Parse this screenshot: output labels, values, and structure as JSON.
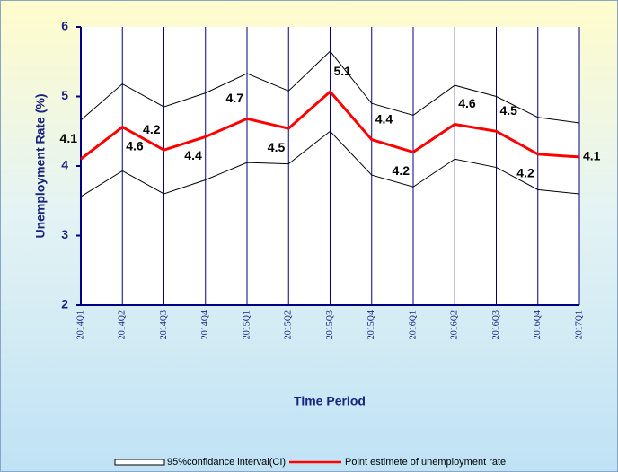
{
  "chart_data": {
    "type": "line",
    "x_label": "Time Period",
    "y_label": "Unemployment Rate (%)",
    "categories": [
      "2014Q1",
      "2014Q2",
      "2014Q3",
      "2014Q4",
      "2015Q1",
      "2015Q2",
      "2015Q3",
      "2015Q4",
      "2016Q1",
      "2016Q2",
      "2016Q3",
      "2016Q4",
      "2017Q1"
    ],
    "ylim": [
      2,
      6
    ],
    "yticks": [
      2,
      3,
      4,
      5,
      6
    ],
    "series": [
      {
        "name": "95%confidance interval(CI)",
        "color": "#000000",
        "lower": [
          3.56,
          3.93,
          3.6,
          3.8,
          4.05,
          4.03,
          4.5,
          3.87,
          3.7,
          4.1,
          3.98,
          3.66,
          3.6
        ],
        "upper": [
          4.66,
          5.18,
          4.85,
          5.05,
          5.33,
          5.08,
          5.65,
          4.9,
          4.73,
          5.16,
          5.0,
          4.7,
          4.62
        ]
      },
      {
        "name": "Point estimete of unemployment rate",
        "color": "#ff0000",
        "values": [
          4.1,
          4.56,
          4.23,
          4.42,
          4.68,
          4.54,
          5.07,
          4.38,
          4.2,
          4.6,
          4.5,
          4.17,
          4.13
        ],
        "value_labels": [
          "4.1",
          "4.6",
          "4.2",
          "4.4",
          "4.7",
          "4.5",
          "5.1",
          "4.4",
          "4.2",
          "4.6",
          "4.5",
          "4.2",
          "4.1"
        ]
      }
    ]
  }
}
